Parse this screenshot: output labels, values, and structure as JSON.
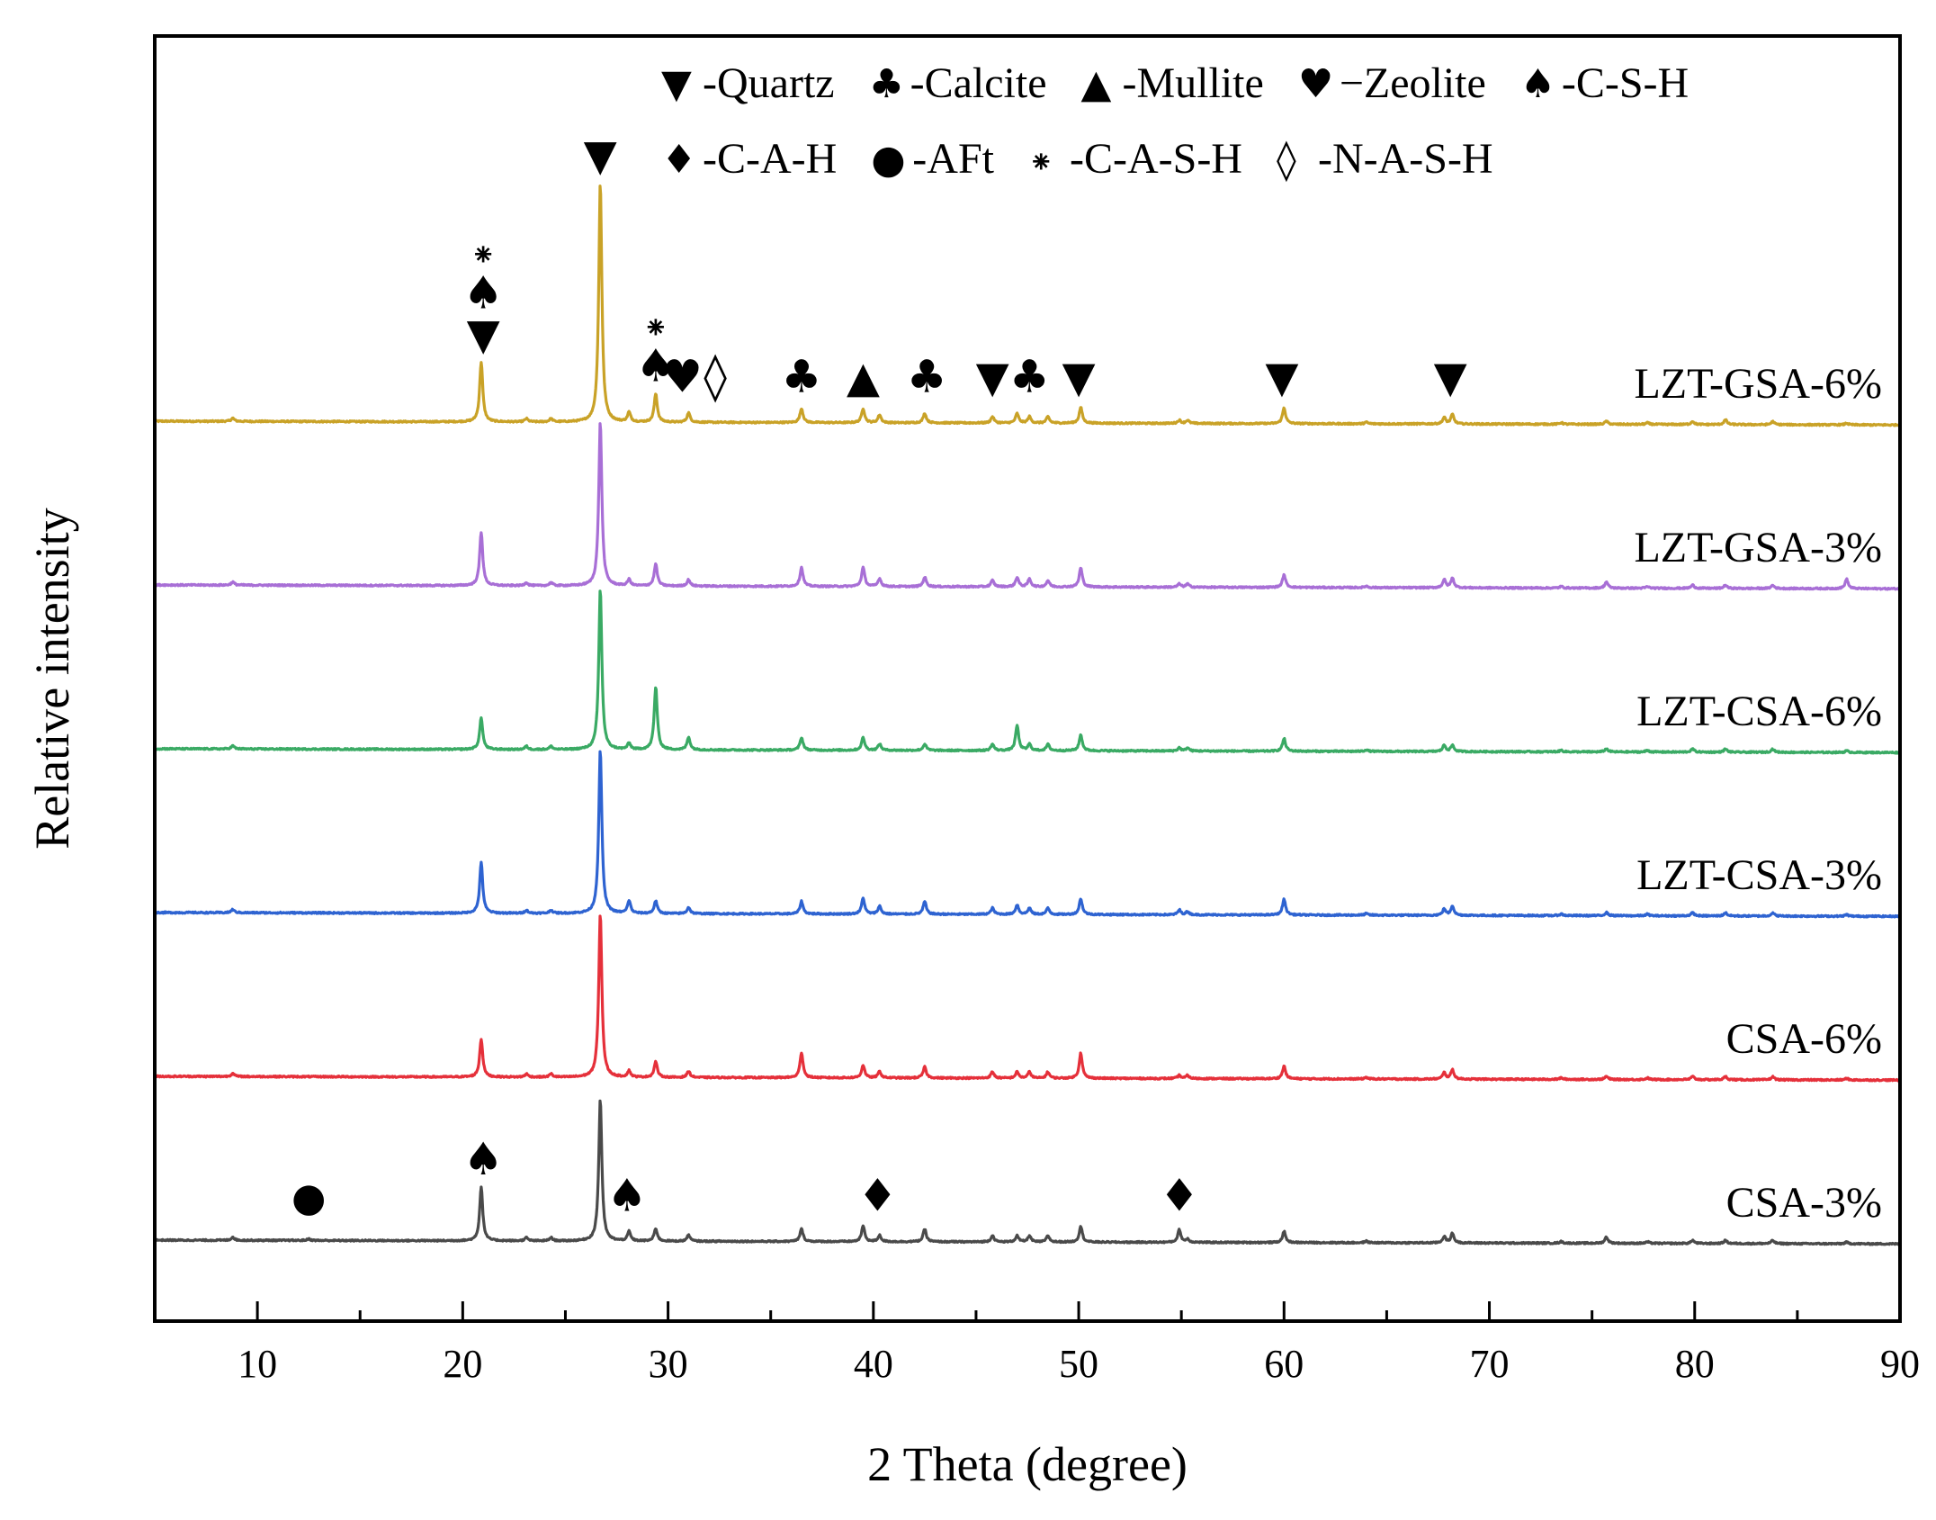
{
  "chart_data": {
    "type": "line",
    "xlabel": "2 Theta (degree)",
    "ylabel": "Relative intensity",
    "xlim": [
      5,
      90
    ],
    "xticks": [
      10,
      20,
      30,
      40,
      50,
      60,
      70,
      80,
      90
    ],
    "grid": false,
    "legend": {
      "placement": "top-right",
      "rows": [
        [
          {
            "symbol": "▼",
            "label": "-Quartz"
          },
          {
            "symbol": "♣",
            "label": "-Calcite"
          },
          {
            "symbol": "▲",
            "label": "-Mullite"
          },
          {
            "symbol": "♥",
            "label": "−Zeolite"
          },
          {
            "symbol": "♠",
            "label": "-C-S-H"
          }
        ],
        [
          {
            "symbol": "♦",
            "label": "-C-A-H"
          },
          {
            "symbol": "●",
            "label": "-AFt"
          },
          {
            "symbol": "⁕",
            "label": "-C-A-S-H"
          },
          {
            "symbol": "◊",
            "label": "-N-A-S-H"
          }
        ]
      ]
    },
    "peaks_2theta": [
      8.8,
      12.5,
      20.9,
      23.1,
      24.3,
      26.7,
      28.1,
      29.4,
      31.0,
      36.5,
      39.5,
      40.3,
      42.5,
      45.8,
      47.0,
      47.6,
      48.5,
      50.1,
      54.9,
      55.3,
      60.0,
      64.0,
      67.8,
      68.2,
      73.5,
      75.7,
      77.7,
      79.9,
      81.5,
      83.8,
      87.4
    ],
    "series": [
      {
        "name": "LZT-GSA-6%",
        "color": "#c9a227",
        "offset": 5,
        "baseline": [
          [
            5,
            0.0
          ],
          [
            90,
            -0.12
          ]
        ],
        "intensities": [
          0.1,
          0.0,
          1.9,
          0.1,
          0.1,
          7.6,
          0.3,
          0.9,
          0.3,
          0.45,
          0.45,
          0.25,
          0.3,
          0.2,
          0.3,
          0.2,
          0.2,
          0.5,
          0.1,
          0.1,
          0.5,
          0.05,
          0.2,
          0.3,
          0.05,
          0.1,
          0.05,
          0.1,
          0.15,
          0.1,
          0.05
        ]
      },
      {
        "name": "LZT-GSA-3%",
        "color": "#a86fd6",
        "offset": 4,
        "baseline": [
          [
            5,
            0.0
          ],
          [
            90,
            -0.12
          ]
        ],
        "intensities": [
          0.1,
          0.0,
          1.7,
          0.1,
          0.1,
          5.2,
          0.2,
          0.7,
          0.2,
          0.6,
          0.6,
          0.25,
          0.3,
          0.2,
          0.3,
          0.25,
          0.2,
          0.6,
          0.1,
          0.1,
          0.4,
          0.05,
          0.25,
          0.3,
          0.05,
          0.2,
          0.05,
          0.1,
          0.1,
          0.1,
          0.3
        ]
      },
      {
        "name": "LZT-CSA-6%",
        "color": "#3aaa64",
        "offset": 3,
        "baseline": [
          [
            5,
            0.0
          ],
          [
            90,
            -0.12
          ]
        ],
        "intensities": [
          0.1,
          0.0,
          1.0,
          0.1,
          0.1,
          5.1,
          0.2,
          2.0,
          0.4,
          0.4,
          0.4,
          0.2,
          0.2,
          0.2,
          0.8,
          0.2,
          0.2,
          0.5,
          0.1,
          0.1,
          0.4,
          0.05,
          0.2,
          0.2,
          0.05,
          0.1,
          0.05,
          0.1,
          0.1,
          0.1,
          0.05
        ]
      },
      {
        "name": "LZT-CSA-3%",
        "color": "#2e63d1",
        "offset": 2,
        "baseline": [
          [
            5,
            0.0
          ],
          [
            90,
            -0.12
          ]
        ],
        "intensities": [
          0.1,
          0.0,
          1.6,
          0.1,
          0.1,
          5.2,
          0.4,
          0.4,
          0.2,
          0.4,
          0.5,
          0.25,
          0.4,
          0.2,
          0.3,
          0.2,
          0.2,
          0.5,
          0.15,
          0.1,
          0.5,
          0.05,
          0.2,
          0.3,
          0.05,
          0.1,
          0.05,
          0.1,
          0.1,
          0.1,
          0.05
        ]
      },
      {
        "name": "CSA-6%",
        "color": "#e5303a",
        "offset": 1,
        "baseline": [
          [
            5,
            0.0
          ],
          [
            90,
            -0.12
          ]
        ],
        "intensities": [
          0.1,
          0.0,
          1.2,
          0.1,
          0.1,
          5.2,
          0.2,
          0.5,
          0.2,
          0.8,
          0.4,
          0.2,
          0.35,
          0.2,
          0.2,
          0.2,
          0.2,
          0.8,
          0.1,
          0.1,
          0.4,
          0.05,
          0.2,
          0.3,
          0.05,
          0.1,
          0.05,
          0.1,
          0.1,
          0.1,
          0.05
        ]
      },
      {
        "name": "CSA-3%",
        "color": "#4a4a4a",
        "offset": 0,
        "baseline": [
          [
            5,
            0.0
          ],
          [
            90,
            -0.12
          ]
        ],
        "intensities": [
          0.1,
          0.05,
          1.7,
          0.1,
          0.1,
          4.5,
          0.3,
          0.4,
          0.2,
          0.4,
          0.5,
          0.2,
          0.4,
          0.2,
          0.2,
          0.2,
          0.2,
          0.5,
          0.4,
          0.1,
          0.35,
          0.05,
          0.2,
          0.3,
          0.05,
          0.2,
          0.05,
          0.1,
          0.1,
          0.1,
          0.05
        ]
      }
    ],
    "annotations": [
      {
        "series": "LZT-GSA-6%",
        "x": 21.0,
        "symbols": [
          "▼",
          "♠",
          "⁕"
        ]
      },
      {
        "series": "LZT-GSA-6%",
        "x": 26.7,
        "symbols": [
          "▼"
        ]
      },
      {
        "series": "LZT-GSA-6%",
        "x": 29.4,
        "symbols": [
          "♠",
          "⁕"
        ]
      },
      {
        "series": "LZT-GSA-6%",
        "x": 30.7,
        "symbols": [
          "♥"
        ]
      },
      {
        "series": "LZT-GSA-6%",
        "x": 32.3,
        "symbols": [
          "◊"
        ]
      },
      {
        "series": "LZT-GSA-6%",
        "x": 36.5,
        "symbols": [
          "♣"
        ]
      },
      {
        "series": "LZT-GSA-6%",
        "x": 39.5,
        "symbols": [
          "▲"
        ]
      },
      {
        "series": "LZT-GSA-6%",
        "x": 42.6,
        "symbols": [
          "♣"
        ]
      },
      {
        "series": "LZT-GSA-6%",
        "x": 45.8,
        "symbols": [
          "▼"
        ]
      },
      {
        "series": "LZT-GSA-6%",
        "x": 47.6,
        "symbols": [
          "♣"
        ]
      },
      {
        "series": "LZT-GSA-6%",
        "x": 50.0,
        "symbols": [
          "▼"
        ]
      },
      {
        "series": "LZT-GSA-6%",
        "x": 59.9,
        "symbols": [
          "▼"
        ]
      },
      {
        "series": "LZT-GSA-6%",
        "x": 68.1,
        "symbols": [
          "▼"
        ]
      },
      {
        "series": "CSA-3%",
        "x": 12.5,
        "symbols": [
          "●"
        ]
      },
      {
        "series": "CSA-3%",
        "x": 21.0,
        "symbols": [
          "♠"
        ]
      },
      {
        "series": "CSA-3%",
        "x": 28.0,
        "symbols": [
          "♠"
        ]
      },
      {
        "series": "CSA-3%",
        "x": 40.2,
        "symbols": [
          "♦"
        ]
      },
      {
        "series": "CSA-3%",
        "x": 54.9,
        "symbols": [
          "♦"
        ]
      }
    ]
  }
}
